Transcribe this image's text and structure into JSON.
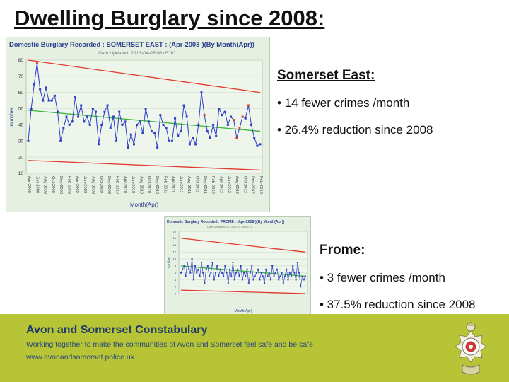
{
  "slide": {
    "title": "Dwelling Burglary since 2008:"
  },
  "somerset_east": {
    "heading": "Somerset East:",
    "bullets": [
      "• 14 fewer crimes /month",
      "• 26.4% reduction since 2008"
    ]
  },
  "frome": {
    "heading": "Frome:",
    "bullets": [
      "• 3 fewer crimes /month",
      "• 37.5% reduction since 2008"
    ]
  },
  "footer": {
    "org": "Avon and Somerset Constabulary",
    "tagline": "Working together to make the communities of Avon and Somerset feel safe and be safe",
    "url": "www.avonandsomerset.police.uk"
  },
  "colors": {
    "footer_band": "#b6c436",
    "series_line": "#2c3fc8",
    "upper_limit": "#e03a2f",
    "trend": "#3cb43c",
    "flag": "#e03a2f"
  },
  "chart_data": [
    {
      "type": "line",
      "title": "Domestic Burglary Recorded : SOMERSET EAST : (Apr-2008-)(By Month(Apr))",
      "subtitle": "Date Updated: 2013-04-05 06:05:10",
      "xlabel": "Month(Apr)",
      "ylabel": "number",
      "ylim": [
        10,
        80
      ],
      "yticks": [
        10,
        20,
        30,
        40,
        50,
        60,
        70,
        80
      ],
      "x_tick_labels": [
        "Apr-2008",
        "Jun-2008",
        "Aug-2008",
        "Oct-2008",
        "Dec-2008",
        "Feb-2009",
        "Apr-2009",
        "Jun-2009",
        "Aug-2009",
        "Oct-2009",
        "Dec-2009",
        "Feb-2010",
        "Apr-2010",
        "Jun-2010",
        "Aug-2010",
        "Oct-2010",
        "Dec-2010",
        "Feb-2011",
        "Apr-2011",
        "Jun-2011",
        "Aug-2011",
        "Oct-2011",
        "Dec-2011",
        "Feb-2012",
        "Apr-2012",
        "Jun-2012",
        "Aug-2012",
        "Oct-2012",
        "Dec-2012",
        "Feb-2013"
      ],
      "grid": true,
      "series": [
        {
          "values": [
            30,
            50,
            65,
            78,
            62,
            55,
            63,
            55,
            55,
            58,
            48,
            30,
            38,
            45,
            40,
            42,
            57,
            45,
            52,
            42,
            45,
            40,
            50,
            48,
            28,
            40,
            48,
            52,
            38,
            45,
            30,
            48,
            40,
            42,
            26,
            34,
            28,
            40,
            42,
            35,
            50,
            42,
            36,
            35,
            26,
            46,
            40,
            38,
            30,
            30,
            44,
            33,
            36,
            52,
            45,
            28,
            32,
            28,
            40,
            60,
            46,
            36,
            32,
            40,
            33,
            50,
            46,
            48,
            40,
            45,
            43,
            32,
            38,
            45,
            44,
            52,
            40,
            32,
            27,
            28
          ],
          "flagged": [
            3,
            60,
            70,
            71,
            72,
            73,
            75
          ]
        }
      ],
      "upper_control_line": [
        80,
        60
      ],
      "trend_line": [
        49,
        36
      ],
      "lower_control_line": [
        18,
        12
      ]
    },
    {
      "type": "line",
      "title": "Domestic Burglary Recorded : FROME : (Apr-2008-)(By Month(Apr))",
      "subtitle": "Date Updated: 2013-04-05 06:05:10",
      "xlabel": "Month(Apr)",
      "ylabel": "number",
      "ylim": [
        0,
        18
      ],
      "yticks": [
        0,
        2,
        4,
        6,
        8,
        10,
        12,
        14,
        16,
        18
      ],
      "grid": true,
      "series": [
        {
          "values": [
            6,
            7,
            8,
            5,
            9,
            7,
            6,
            10,
            4,
            8,
            6,
            7,
            5,
            9,
            6,
            3,
            7,
            8,
            5,
            6,
            9,
            4,
            6,
            8,
            5,
            7,
            6,
            5,
            8,
            6,
            3,
            7,
            5,
            9,
            4,
            6,
            7,
            5,
            8,
            4,
            6,
            5,
            7,
            3,
            6,
            8,
            4,
            5,
            6,
            7,
            4,
            6,
            5,
            3,
            7,
            5,
            6,
            4,
            8,
            5,
            6,
            7,
            4,
            5,
            6,
            3,
            5,
            7,
            4,
            6,
            5,
            8,
            6,
            4,
            9,
            6,
            2,
            5,
            4,
            5
          ]
        }
      ],
      "upper_control_line": [
        16,
        12
      ],
      "trend_line": [
        8,
        5
      ],
      "lower_control_line": [
        1,
        0
      ]
    }
  ]
}
